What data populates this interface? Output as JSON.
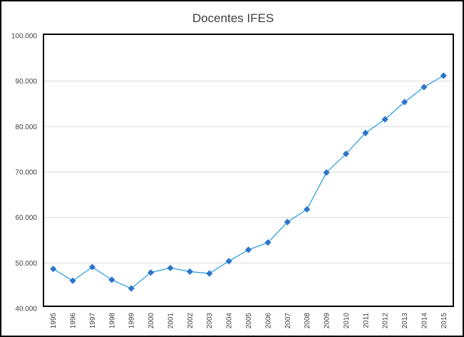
{
  "chart_data": {
    "type": "line",
    "title": "Docentes IFES",
    "xlabel": "",
    "ylabel": "",
    "ylim": [
      40000,
      100000
    ],
    "yticks": [
      "40.000",
      "50.000",
      "60.000",
      "70.000",
      "80.000",
      "90.000",
      "100.000"
    ],
    "grid": true,
    "legend": "none",
    "color": "#1f9bde",
    "marker_color": "#2e75c9",
    "x": [
      "1995",
      "1996",
      "1997",
      "1998",
      "1999",
      "2000",
      "2001",
      "2002",
      "2003",
      "2004",
      "2005",
      "2006",
      "2007",
      "2008",
      "2009",
      "2010",
      "2011",
      "2012",
      "2013",
      "2014",
      "2015"
    ],
    "series": [
      {
        "values": [
          48700,
          46100,
          49100,
          46300,
          44400,
          47900,
          48900,
          48100,
          47700,
          50400,
          52900,
          54500,
          59000,
          61800,
          69900,
          74000,
          78600,
          81600,
          85400,
          88700,
          91200
        ]
      }
    ]
  }
}
